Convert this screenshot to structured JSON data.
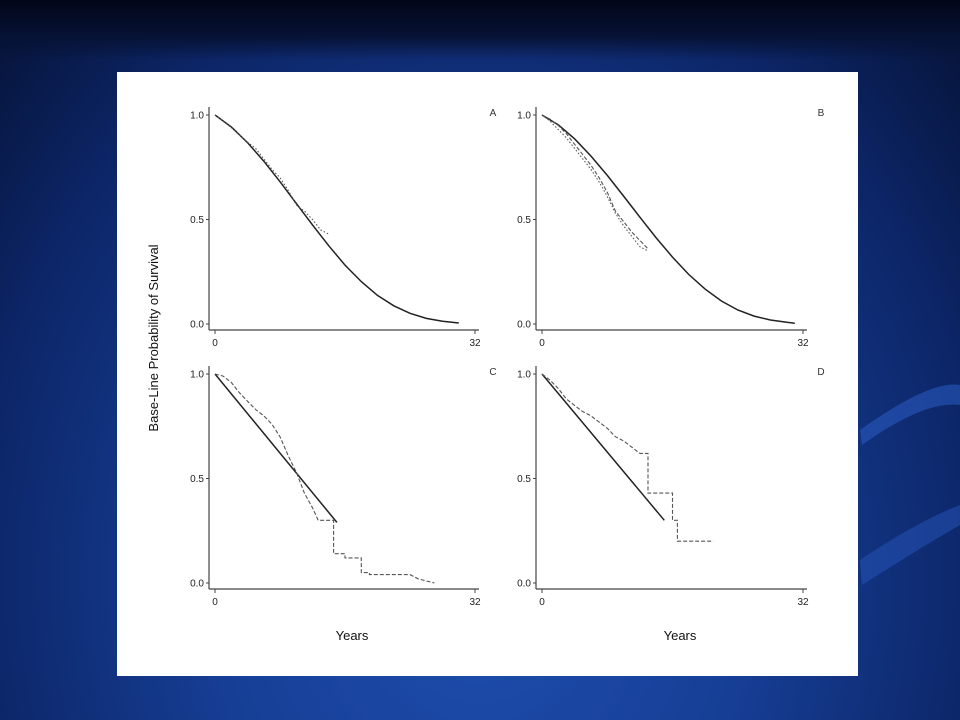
{
  "figure": {
    "ylabel": "Base-Line Probability of Survival",
    "xlabel": "Years"
  },
  "colors": {
    "background": "#163e95",
    "panel": "#ffffff",
    "line": "#222222",
    "dashed": "#555555"
  },
  "chart_data": [
    {
      "type": "line",
      "panel_label": "A",
      "xlim": [
        0,
        32
      ],
      "ylim": [
        0,
        1
      ],
      "xticks": [
        "0",
        "32"
      ],
      "yticks": [
        "0.0",
        "0.5",
        "1.0"
      ],
      "series": [
        {
          "style": "solid",
          "x": [
            0,
            2,
            4,
            6,
            8,
            10,
            12,
            14,
            16,
            18,
            20,
            22,
            24,
            26,
            28,
            30
          ],
          "y": [
            1.0,
            0.943,
            0.868,
            0.779,
            0.681,
            0.577,
            0.474,
            0.374,
            0.282,
            0.203,
            0.137,
            0.087,
            0.051,
            0.027,
            0.013,
            0.005
          ]
        },
        {
          "style": "dotted",
          "x": [
            0,
            2,
            4,
            5,
            6,
            7,
            8,
            9,
            10,
            11,
            12,
            13,
            14
          ],
          "y": [
            1.0,
            0.94,
            0.87,
            0.84,
            0.79,
            0.74,
            0.7,
            0.64,
            0.57,
            0.54,
            0.5,
            0.45,
            0.43
          ]
        }
      ]
    },
    {
      "type": "line",
      "panel_label": "B",
      "xlim": [
        0,
        32
      ],
      "ylim": [
        0,
        1
      ],
      "xticks": [
        "0",
        "32"
      ],
      "yticks": [
        "0.0",
        "0.5",
        "1.0"
      ],
      "series": [
        {
          "style": "solid",
          "x": [
            0,
            2,
            4,
            6,
            8,
            10,
            12,
            14,
            16,
            18,
            20,
            22,
            24,
            26,
            28,
            30,
            31
          ],
          "y": [
            1.0,
            0.953,
            0.886,
            0.804,
            0.711,
            0.612,
            0.511,
            0.412,
            0.32,
            0.237,
            0.167,
            0.11,
            0.067,
            0.038,
            0.019,
            0.008,
            0.004
          ]
        },
        {
          "style": "dashed",
          "x": [
            0,
            1,
            2,
            3,
            4,
            5,
            6,
            7,
            8,
            9,
            10,
            11,
            12,
            13
          ],
          "y": [
            1.0,
            0.98,
            0.95,
            0.91,
            0.86,
            0.81,
            0.76,
            0.7,
            0.63,
            0.54,
            0.49,
            0.44,
            0.4,
            0.36
          ]
        },
        {
          "style": "dotted",
          "x": [
            0,
            1,
            2,
            3,
            4,
            5,
            6,
            7,
            8,
            9,
            10,
            11,
            12,
            13
          ],
          "y": [
            1.0,
            0.97,
            0.93,
            0.89,
            0.84,
            0.79,
            0.74,
            0.68,
            0.61,
            0.53,
            0.47,
            0.42,
            0.37,
            0.35
          ]
        }
      ]
    },
    {
      "type": "line",
      "panel_label": "C",
      "xlim": [
        0,
        32
      ],
      "ylim": [
        0,
        1
      ],
      "xticks": [
        "0",
        "32"
      ],
      "yticks": [
        "0.0",
        "0.5",
        "1.0"
      ],
      "series": [
        {
          "style": "solid",
          "x": [
            0,
            15
          ],
          "y": [
            1.0,
            0.29
          ]
        },
        {
          "style": "dashed",
          "x": [
            0,
            1,
            2,
            3,
            4,
            5,
            6,
            7,
            8,
            9,
            10,
            11,
            12,
            12.7,
            12.7,
            14.6,
            14.6,
            16,
            16,
            18,
            18,
            19,
            19,
            24,
            25,
            27
          ],
          "y": [
            1.0,
            0.99,
            0.96,
            0.91,
            0.87,
            0.83,
            0.8,
            0.76,
            0.7,
            0.61,
            0.53,
            0.43,
            0.36,
            0.3,
            0.3,
            0.3,
            0.14,
            0.14,
            0.12,
            0.12,
            0.05,
            0.05,
            0.04,
            0.04,
            0.02,
            0.0
          ]
        }
      ]
    },
    {
      "type": "line",
      "panel_label": "D",
      "xlim": [
        0,
        32
      ],
      "ylim": [
        0,
        1
      ],
      "xticks": [
        "0",
        "32"
      ],
      "yticks": [
        "0.0",
        "0.5",
        "1.0"
      ],
      "series": [
        {
          "style": "solid",
          "x": [
            0,
            15
          ],
          "y": [
            1.0,
            0.3
          ]
        },
        {
          "style": "dashed",
          "x": [
            0,
            1,
            2,
            3,
            4,
            5,
            6,
            7,
            8,
            9,
            10,
            11,
            12,
            13,
            13,
            16,
            16,
            16.6,
            16.6,
            21
          ],
          "y": [
            1.0,
            0.97,
            0.93,
            0.88,
            0.85,
            0.82,
            0.8,
            0.77,
            0.74,
            0.7,
            0.68,
            0.65,
            0.62,
            0.62,
            0.43,
            0.43,
            0.3,
            0.3,
            0.2,
            0.2
          ]
        }
      ]
    }
  ]
}
